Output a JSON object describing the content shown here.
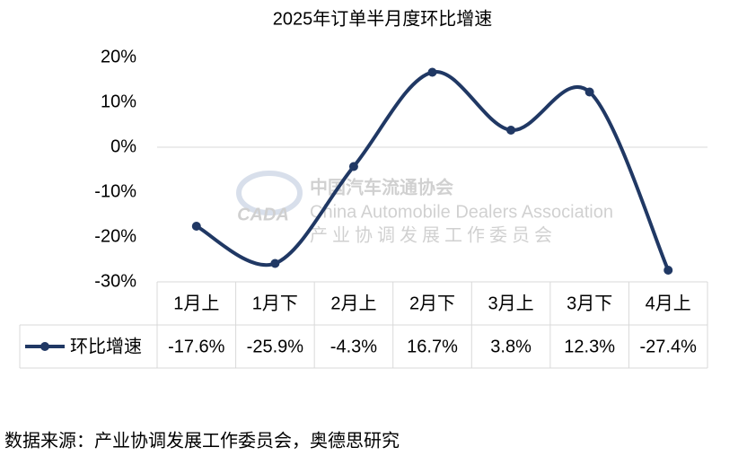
{
  "chart_data": {
    "type": "line",
    "title": "2025年订单半月度环比增速",
    "categories": [
      "1月上",
      "1月下",
      "2月上",
      "2月下",
      "3月上",
      "3月下",
      "4月上"
    ],
    "series": [
      {
        "name": "环比增速",
        "color": "#203864",
        "values": [
          -17.6,
          -25.9,
          -4.3,
          16.7,
          3.8,
          12.3,
          -27.4
        ],
        "value_labels": [
          "-17.6%",
          "-25.9%",
          "-4.3%",
          "16.7%",
          "3.8%",
          "12.3%",
          "-27.4%"
        ]
      }
    ],
    "ylim": [
      -30,
      20
    ],
    "yticks": [
      {
        "value": -30,
        "label": "-30%"
      },
      {
        "value": -20,
        "label": "-20%"
      },
      {
        "value": -10,
        "label": "-10%"
      },
      {
        "value": 0,
        "label": "0%"
      },
      {
        "value": 10,
        "label": "10%"
      },
      {
        "value": 20,
        "label": "20%"
      }
    ],
    "smooth": true,
    "watermark": {
      "name": "中国汽车流通协会",
      "english": "China Automobile Dealers Association",
      "sub": "产业协调发展工作委员会",
      "logo": "CADA"
    },
    "source": "数据来源：产业协调发展工作委员会，奥德思研究"
  }
}
